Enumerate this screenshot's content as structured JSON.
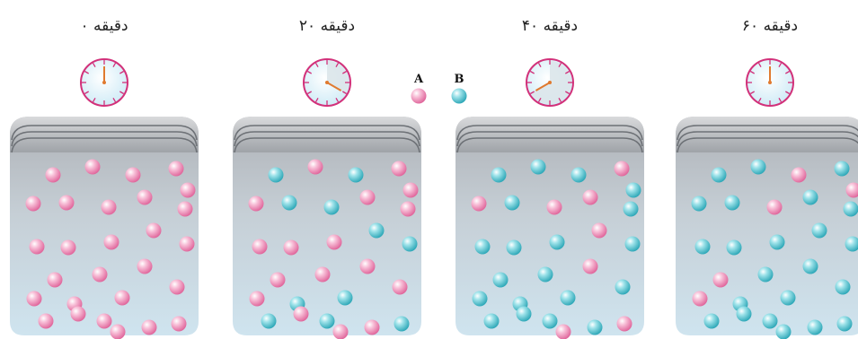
{
  "legend": [
    {
      "label": "A",
      "color": "pink"
    },
    {
      "label": "B",
      "color": "cyan"
    }
  ],
  "colors": {
    "A": "#f3a6c6",
    "B": "#6ccfd8",
    "clock_ring": "#d2317a",
    "hand": "#e07a2f"
  },
  "panels": [
    {
      "label": "۰ دقیقه",
      "clock_minutes": 0,
      "particles": [
        "A",
        "A",
        "A",
        "A",
        "A",
        "A",
        "A",
        "A",
        "A",
        "A",
        "A",
        "A",
        "A",
        "A",
        "A",
        "A",
        "A",
        "A",
        "A",
        "A",
        "A",
        "A",
        "A",
        "A",
        "A",
        "A",
        "A",
        "A"
      ]
    },
    {
      "label": "۲۰ دقیقه",
      "clock_minutes": 20,
      "particles": [
        "B",
        "A",
        "B",
        "A",
        "A",
        "A",
        "B",
        "B",
        "A",
        "A",
        "B",
        "A",
        "A",
        "A",
        "B",
        "A",
        "A",
        "A",
        "A",
        "A",
        "B",
        "B",
        "B",
        "A",
        "A",
        "A",
        "B",
        "B"
      ]
    },
    {
      "label": "۴۰ دقیقه",
      "clock_minutes": 40,
      "particles": [
        "B",
        "B",
        "B",
        "A",
        "B",
        "A",
        "B",
        "A",
        "A",
        "B",
        "A",
        "B",
        "B",
        "B",
        "B",
        "B",
        "B",
        "A",
        "B",
        "B",
        "B",
        "B",
        "B",
        "B",
        "A",
        "B",
        "A",
        "B"
      ]
    },
    {
      "label": "۶۰ دقیقه",
      "clock_minutes": 60,
      "particles": [
        "B",
        "B",
        "A",
        "B",
        "A",
        "B",
        "B",
        "A",
        "B",
        "B",
        "B",
        "B",
        "B",
        "B",
        "B",
        "A",
        "B",
        "B",
        "B",
        "A",
        "B",
        "B",
        "B",
        "B",
        "B",
        "B",
        "B",
        "B"
      ]
    }
  ]
}
